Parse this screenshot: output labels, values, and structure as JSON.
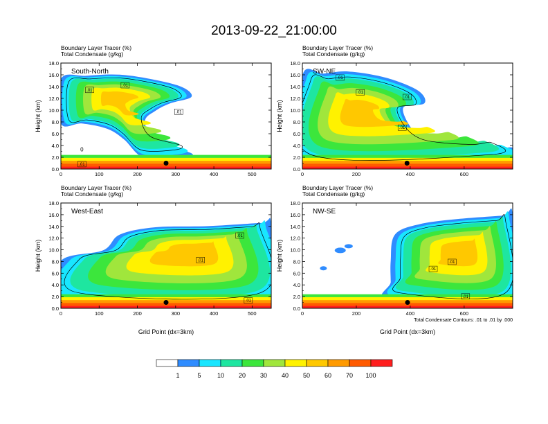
{
  "figure": {
    "title": "2013-09-22_21:00:00",
    "panel_header_line1": "Boundary Layer Tracer    (%)",
    "panel_header_line2": "Total Condensate    (g/kg)",
    "ylabel": "Height (km)",
    "xlabel": "Grid Point (dx=3km)",
    "contour_note": "Total Condensate Contours: .01 to .01 by .000"
  },
  "colorbar": {
    "colors": [
      "#ffffff",
      "#2f8cff",
      "#19e6ff",
      "#1ee6a0",
      "#3ce63c",
      "#a0e63c",
      "#fff200",
      "#ffc800",
      "#ff9a00",
      "#ff5a00",
      "#ff1e1e"
    ],
    "labels": [
      "1",
      "5",
      "10",
      "20",
      "30",
      "40",
      "50",
      "60",
      "70",
      "100"
    ]
  },
  "chart_data": [
    {
      "type": "heatmap",
      "name": "South-North",
      "xlim": [
        0,
        550
      ],
      "ylim": [
        0,
        18
      ],
      "xticks": [
        0,
        100,
        200,
        300,
        400,
        500
      ],
      "yticks": [
        "0.0",
        "2.0",
        "4.0",
        "6.0",
        "8.0",
        "10.0",
        "12.0",
        "14.0",
        "16.0",
        "18.0"
      ],
      "contour_labels": [
        {
          "text": ".01",
          "x": 75,
          "y": 13.2
        },
        {
          "text": ".01",
          "x": 168,
          "y": 14.0
        },
        {
          "text": ".01",
          "x": 308,
          "y": 9.5
        },
        {
          "text": ".01",
          "x": 55,
          "y": 0.6
        },
        {
          "text": "0",
          "x": 55,
          "y": 3.0
        }
      ],
      "marker": {
        "x": 275,
        "y": 1.0
      }
    },
    {
      "type": "heatmap",
      "name": "SW-NE",
      "xlim": [
        0,
        780
      ],
      "ylim": [
        0,
        18
      ],
      "xticks": [
        0,
        200,
        400,
        600
      ],
      "yticks": [
        "0.0",
        "2.0",
        "4.0",
        "6.0",
        "8.0",
        "10.0",
        "12.0",
        "14.0",
        "16.0",
        "18.0"
      ],
      "contour_labels": [
        {
          "text": ".01",
          "x": 140,
          "y": 15.3
        },
        {
          "text": ".01",
          "x": 215,
          "y": 12.8
        },
        {
          "text": ".01",
          "x": 388,
          "y": 12.0
        },
        {
          "text": ".01",
          "x": 370,
          "y": 6.8
        }
      ],
      "marker": {
        "x": 388,
        "y": 1.0
      }
    },
    {
      "type": "heatmap",
      "name": "West-East",
      "xlim": [
        0,
        550
      ],
      "ylim": [
        0,
        18
      ],
      "xticks": [
        0,
        100,
        200,
        300,
        400,
        500
      ],
      "yticks": [
        "0.0",
        "2.0",
        "4.0",
        "6.0",
        "8.0",
        "10.0",
        "12.0",
        "14.0",
        "16.0",
        "18.0"
      ],
      "contour_labels": [
        {
          "text": ".01",
          "x": 468,
          "y": 12.2
        },
        {
          "text": ".01",
          "x": 365,
          "y": 8.0
        },
        {
          "text": ".01",
          "x": 490,
          "y": 1.1
        }
      ],
      "marker": {
        "x": 275,
        "y": 1.0
      }
    },
    {
      "type": "heatmap",
      "name": "NW-SE",
      "xlim": [
        0,
        780
      ],
      "ylim": [
        0,
        18
      ],
      "xticks": [
        0,
        200,
        400,
        600
      ],
      "yticks": [
        "0.0",
        "2.0",
        "4.0",
        "6.0",
        "8.0",
        "10.0",
        "12.0",
        "14.0",
        "16.0",
        "18.0"
      ],
      "contour_labels": [
        {
          "text": ".01",
          "x": 485,
          "y": 6.5
        },
        {
          "text": ".01",
          "x": 555,
          "y": 7.7
        },
        {
          "text": ".01",
          "x": 605,
          "y": 1.8
        }
      ],
      "marker": {
        "x": 390,
        "y": 1.0
      }
    }
  ]
}
